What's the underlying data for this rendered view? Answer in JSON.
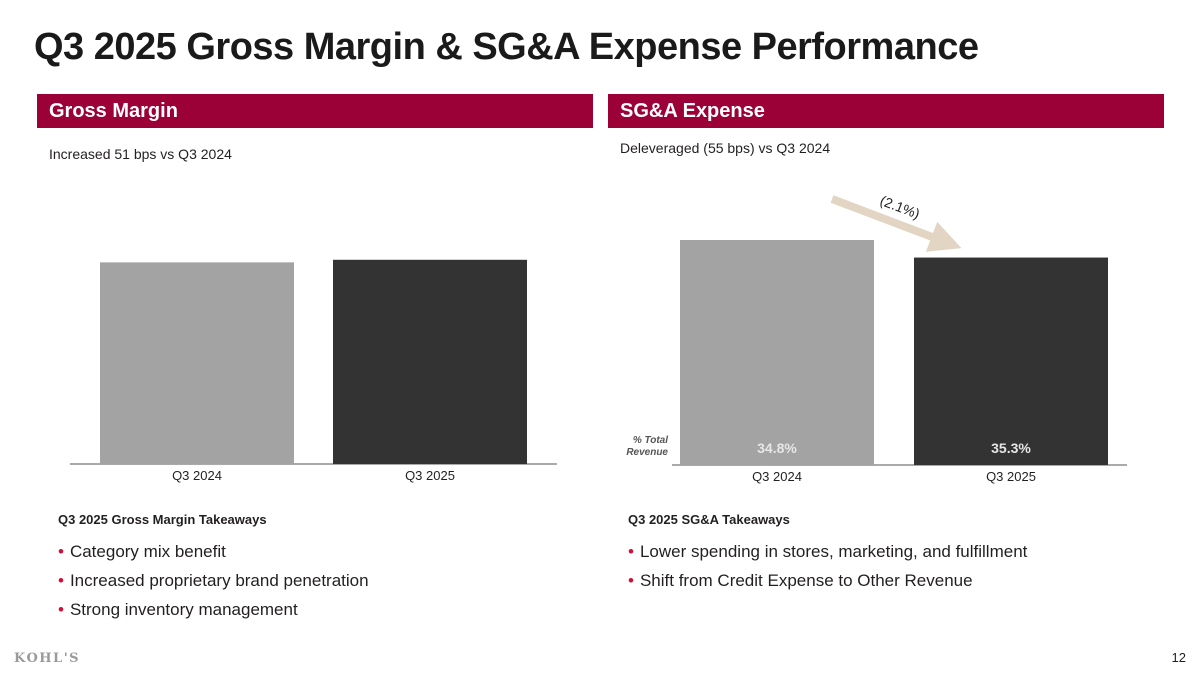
{
  "title": "Q3 2025 Gross Margin & SG&A Expense Performance",
  "colors": {
    "brand": "#9b0036",
    "bar_prior": "#a3a3a3",
    "bar_current": "#333333",
    "bullet": "#d0103a",
    "arrow": "#e2d5c3"
  },
  "panels": {
    "gross_margin": {
      "header": "Gross Margin",
      "subtitle": "Increased 51 bps vs Q3 2024",
      "takeaways_title": "Q3 2025 Gross Margin Takeaways",
      "takeaways": [
        "Category mix benefit",
        "Increased proprietary brand penetration",
        "Strong inventory management"
      ]
    },
    "sga": {
      "header": "SG&A Expense",
      "subtitle": "Deleveraged (55 bps) vs Q3 2024",
      "takeaways_title": "Q3 2025 SG&A Takeaways",
      "takeaways": [
        "Lower spending in stores, marketing, and fulfillment",
        "Shift from Credit Expense to Other Revenue"
      ]
    }
  },
  "chart_data": [
    {
      "type": "bar",
      "categories": [
        "Q3 2024",
        "Q3 2025"
      ],
      "values": [
        39.1,
        39.6
      ],
      "ylim": [
        0,
        44.6
      ]
    },
    {
      "type": "bar",
      "categories": [
        "Q3 2024",
        "Q3 2025"
      ],
      "values": [
        34.8,
        35.3
      ],
      "bar_heights": [
        100,
        92.2
      ],
      "ylim": [
        0,
        100
      ],
      "annotation": "(2.1%)",
      "data_label_title": "% Total Revenue",
      "data_label_title_lines": [
        "% Total",
        "Revenue"
      ],
      "data_labels": [
        "34.8%",
        "35.3%"
      ]
    }
  ],
  "footer": {
    "logo": "KOHL'S",
    "page_number": "12"
  }
}
